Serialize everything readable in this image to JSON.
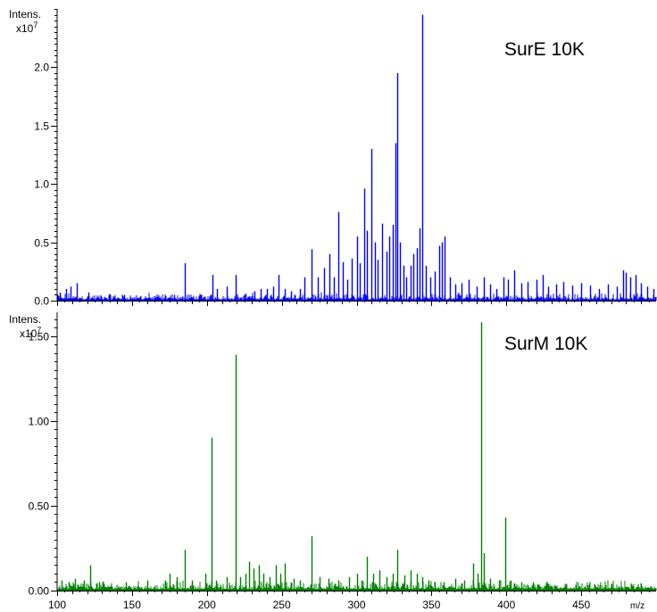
{
  "chart_data": [
    {
      "type": "line",
      "title": "SurE 10K",
      "ylabel": "Intens.",
      "yscale_label": "x10",
      "yscale_exp": "7",
      "xlabel": "m/z",
      "color": "#0000ff",
      "xlim": [
        100,
        500
      ],
      "ylim": [
        0,
        2.5
      ],
      "yticks": [
        "0.0",
        "0.5",
        "1.0",
        "1.5",
        "2.0"
      ],
      "ytick_values": [
        0,
        0.5,
        1.0,
        1.5,
        2.0
      ],
      "noise_level": 0.04,
      "peaks": [
        {
          "mz": 102,
          "i": 0.07
        },
        {
          "mz": 106,
          "i": 0.1
        },
        {
          "mz": 109,
          "i": 0.12
        },
        {
          "mz": 113,
          "i": 0.15
        },
        {
          "mz": 121,
          "i": 0.07
        },
        {
          "mz": 135,
          "i": 0.05
        },
        {
          "mz": 145,
          "i": 0.05
        },
        {
          "mz": 165,
          "i": 0.04
        },
        {
          "mz": 178,
          "i": 0.05
        },
        {
          "mz": 185,
          "i": 0.32
        },
        {
          "mz": 196,
          "i": 0.05
        },
        {
          "mz": 204,
          "i": 0.22
        },
        {
          "mz": 207,
          "i": 0.1
        },
        {
          "mz": 213,
          "i": 0.12
        },
        {
          "mz": 219,
          "i": 0.22
        },
        {
          "mz": 226,
          "i": 0.06
        },
        {
          "mz": 232,
          "i": 0.08
        },
        {
          "mz": 236,
          "i": 0.1
        },
        {
          "mz": 240,
          "i": 0.1
        },
        {
          "mz": 244,
          "i": 0.12
        },
        {
          "mz": 248,
          "i": 0.22
        },
        {
          "mz": 252,
          "i": 0.1
        },
        {
          "mz": 256,
          "i": 0.08
        },
        {
          "mz": 262,
          "i": 0.1
        },
        {
          "mz": 265,
          "i": 0.2
        },
        {
          "mz": 270,
          "i": 0.44
        },
        {
          "mz": 274,
          "i": 0.2
        },
        {
          "mz": 278,
          "i": 0.28
        },
        {
          "mz": 282,
          "i": 0.4
        },
        {
          "mz": 285,
          "i": 0.2
        },
        {
          "mz": 288,
          "i": 0.76
        },
        {
          "mz": 291,
          "i": 0.33
        },
        {
          "mz": 294,
          "i": 0.18
        },
        {
          "mz": 297,
          "i": 0.36
        },
        {
          "mz": 300,
          "i": 0.55
        },
        {
          "mz": 302,
          "i": 0.32
        },
        {
          "mz": 305,
          "i": 0.96
        },
        {
          "mz": 307,
          "i": 0.6
        },
        {
          "mz": 310,
          "i": 1.3
        },
        {
          "mz": 312,
          "i": 0.5
        },
        {
          "mz": 314,
          "i": 0.35
        },
        {
          "mz": 317,
          "i": 0.66
        },
        {
          "mz": 320,
          "i": 0.42
        },
        {
          "mz": 322,
          "i": 0.55
        },
        {
          "mz": 324,
          "i": 0.65
        },
        {
          "mz": 326,
          "i": 1.35
        },
        {
          "mz": 327,
          "i": 1.95
        },
        {
          "mz": 329,
          "i": 0.5
        },
        {
          "mz": 331,
          "i": 0.3
        },
        {
          "mz": 333,
          "i": 0.2
        },
        {
          "mz": 336,
          "i": 0.3
        },
        {
          "mz": 338,
          "i": 0.4
        },
        {
          "mz": 340,
          "i": 0.45
        },
        {
          "mz": 342,
          "i": 0.62
        },
        {
          "mz": 344,
          "i": 2.45
        },
        {
          "mz": 346,
          "i": 0.3
        },
        {
          "mz": 349,
          "i": 0.2
        },
        {
          "mz": 352,
          "i": 0.25
        },
        {
          "mz": 355,
          "i": 0.47
        },
        {
          "mz": 357,
          "i": 0.5
        },
        {
          "mz": 359,
          "i": 0.55
        },
        {
          "mz": 362,
          "i": 0.2
        },
        {
          "mz": 366,
          "i": 0.14
        },
        {
          "mz": 370,
          "i": 0.15
        },
        {
          "mz": 375,
          "i": 0.18
        },
        {
          "mz": 380,
          "i": 0.12
        },
        {
          "mz": 385,
          "i": 0.2
        },
        {
          "mz": 389,
          "i": 0.14
        },
        {
          "mz": 393,
          "i": 0.1
        },
        {
          "mz": 398,
          "i": 0.2
        },
        {
          "mz": 401,
          "i": 0.18
        },
        {
          "mz": 405,
          "i": 0.26
        },
        {
          "mz": 410,
          "i": 0.15
        },
        {
          "mz": 414,
          "i": 0.16
        },
        {
          "mz": 420,
          "i": 0.18
        },
        {
          "mz": 424,
          "i": 0.22
        },
        {
          "mz": 428,
          "i": 0.12
        },
        {
          "mz": 433,
          "i": 0.14
        },
        {
          "mz": 438,
          "i": 0.16
        },
        {
          "mz": 444,
          "i": 0.13
        },
        {
          "mz": 450,
          "i": 0.15
        },
        {
          "mz": 456,
          "i": 0.13
        },
        {
          "mz": 462,
          "i": 0.1
        },
        {
          "mz": 468,
          "i": 0.14
        },
        {
          "mz": 474,
          "i": 0.12
        },
        {
          "mz": 478,
          "i": 0.26
        },
        {
          "mz": 480,
          "i": 0.24
        },
        {
          "mz": 483,
          "i": 0.2
        },
        {
          "mz": 486,
          "i": 0.22
        },
        {
          "mz": 490,
          "i": 0.15
        },
        {
          "mz": 494,
          "i": 0.12
        },
        {
          "mz": 498,
          "i": 0.1
        }
      ]
    },
    {
      "type": "line",
      "title": "SurM 10K",
      "ylabel": "Intens.",
      "yscale_label": "x10",
      "yscale_exp": "7",
      "xlabel": "m/z",
      "color": "#008000",
      "xlim": [
        100,
        500
      ],
      "ylim": [
        0,
        1.64
      ],
      "yticks": [
        "0.00",
        "0.50",
        "1.00",
        "1.50"
      ],
      "ytick_values": [
        0,
        0.5,
        1.0,
        1.5
      ],
      "xticks": [
        "100",
        "150",
        "200",
        "250",
        "300",
        "350",
        "400",
        "450"
      ],
      "xtick_values": [
        100,
        150,
        200,
        250,
        300,
        350,
        400,
        450
      ],
      "noise_level": 0.035,
      "peaks": [
        {
          "mz": 103,
          "i": 0.06
        },
        {
          "mz": 108,
          "i": 0.05
        },
        {
          "mz": 112,
          "i": 0.07
        },
        {
          "mz": 118,
          "i": 0.06
        },
        {
          "mz": 122,
          "i": 0.15
        },
        {
          "mz": 128,
          "i": 0.05
        },
        {
          "mz": 146,
          "i": 0.05
        },
        {
          "mz": 160,
          "i": 0.06
        },
        {
          "mz": 172,
          "i": 0.06
        },
        {
          "mz": 175,
          "i": 0.1
        },
        {
          "mz": 180,
          "i": 0.08
        },
        {
          "mz": 185,
          "i": 0.24
        },
        {
          "mz": 190,
          "i": 0.06
        },
        {
          "mz": 199,
          "i": 0.1
        },
        {
          "mz": 203,
          "i": 0.9
        },
        {
          "mz": 206,
          "i": 0.06
        },
        {
          "mz": 213,
          "i": 0.08
        },
        {
          "mz": 219,
          "i": 1.39
        },
        {
          "mz": 222,
          "i": 0.08
        },
        {
          "mz": 226,
          "i": 0.1
        },
        {
          "mz": 228,
          "i": 0.17
        },
        {
          "mz": 231,
          "i": 0.13
        },
        {
          "mz": 235,
          "i": 0.15
        },
        {
          "mz": 238,
          "i": 0.1
        },
        {
          "mz": 242,
          "i": 0.08
        },
        {
          "mz": 246,
          "i": 0.15
        },
        {
          "mz": 249,
          "i": 0.1
        },
        {
          "mz": 252,
          "i": 0.16
        },
        {
          "mz": 258,
          "i": 0.07
        },
        {
          "mz": 262,
          "i": 0.06
        },
        {
          "mz": 270,
          "i": 0.32
        },
        {
          "mz": 275,
          "i": 0.08
        },
        {
          "mz": 281,
          "i": 0.07
        },
        {
          "mz": 288,
          "i": 0.06
        },
        {
          "mz": 295,
          "i": 0.08
        },
        {
          "mz": 300,
          "i": 0.1
        },
        {
          "mz": 303,
          "i": 0.06
        },
        {
          "mz": 307,
          "i": 0.2
        },
        {
          "mz": 311,
          "i": 0.1
        },
        {
          "mz": 315,
          "i": 0.12
        },
        {
          "mz": 320,
          "i": 0.08
        },
        {
          "mz": 324,
          "i": 0.1
        },
        {
          "mz": 327,
          "i": 0.24
        },
        {
          "mz": 332,
          "i": 0.09
        },
        {
          "mz": 336,
          "i": 0.12
        },
        {
          "mz": 340,
          "i": 0.1
        },
        {
          "mz": 344,
          "i": 0.08
        },
        {
          "mz": 348,
          "i": 0.06
        },
        {
          "mz": 352,
          "i": 0.05
        },
        {
          "mz": 358,
          "i": 0.05
        },
        {
          "mz": 366,
          "i": 0.07
        },
        {
          "mz": 372,
          "i": 0.06
        },
        {
          "mz": 378,
          "i": 0.16
        },
        {
          "mz": 381,
          "i": 0.1
        },
        {
          "mz": 383,
          "i": 1.58
        },
        {
          "mz": 385,
          "i": 0.22
        },
        {
          "mz": 389,
          "i": 0.07
        },
        {
          "mz": 395,
          "i": 0.06
        },
        {
          "mz": 399,
          "i": 0.43
        },
        {
          "mz": 403,
          "i": 0.06
        },
        {
          "mz": 410,
          "i": 0.05
        },
        {
          "mz": 418,
          "i": 0.05
        },
        {
          "mz": 428,
          "i": 0.04
        },
        {
          "mz": 440,
          "i": 0.04
        },
        {
          "mz": 455,
          "i": 0.04
        },
        {
          "mz": 470,
          "i": 0.04
        },
        {
          "mz": 490,
          "i": 0.04
        }
      ]
    }
  ]
}
